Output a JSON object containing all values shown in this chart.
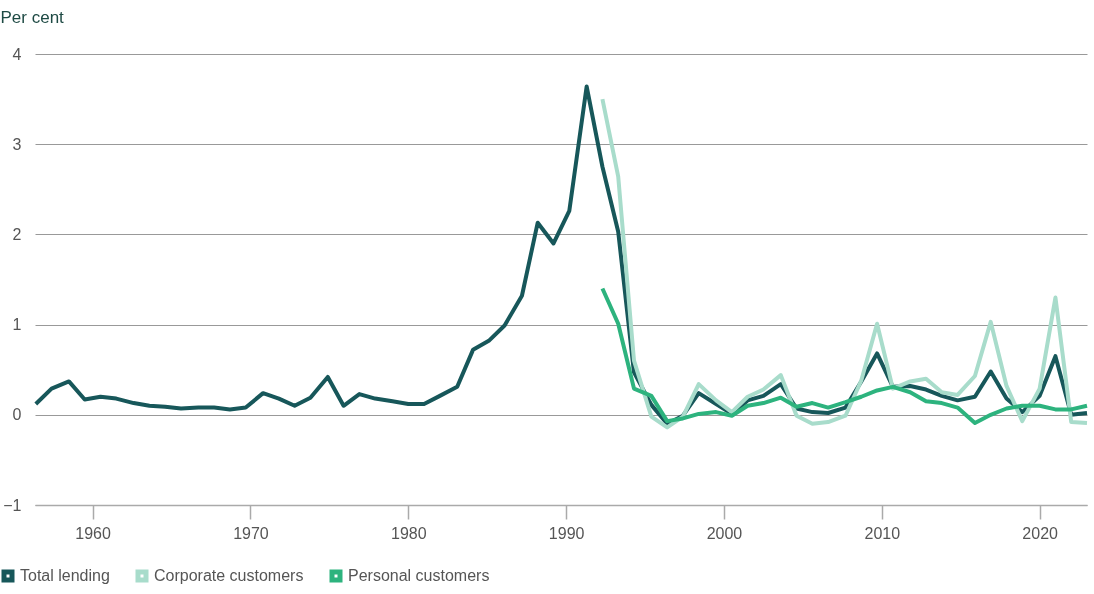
{
  "chart_data": {
    "type": "line",
    "ylabel": "Per cent",
    "x": [
      1956.4,
      1957.4,
      1958.5,
      1959.5,
      1960.5,
      1961.5,
      1962.6,
      1963.6,
      1964.6,
      1965.6,
      1966.7,
      1967.7,
      1968.7,
      1969.7,
      1970.8,
      1971.8,
      1972.8,
      1973.8,
      1974.9,
      1975.9,
      1976.9,
      1977.9,
      1979.0,
      1980.0,
      1981.0,
      1982.0,
      1983.1,
      1984.1,
      1985.1,
      1986.1,
      1987.2,
      1988.2,
      1989.2,
      1990.2,
      1991.3,
      1992.3,
      1993.3,
      1994.3,
      1995.4,
      1996.4,
      1997.4,
      1998.4,
      1999.5,
      2000.5,
      2001.5,
      2002.5,
      2003.6,
      2004.6,
      2005.6,
      2006.6,
      2007.7,
      2008.7,
      2009.7,
      2010.7,
      2011.8,
      2012.8,
      2013.8,
      2014.8,
      2015.9,
      2016.9,
      2017.9,
      2018.9,
      2020.0,
      2021.0,
      2022.0,
      2023.0
    ],
    "series": [
      {
        "name": "Total lending",
        "color": "#17575a",
        "values": [
          0.12,
          0.29,
          0.37,
          0.17,
          0.2,
          0.18,
          0.13,
          0.1,
          0.09,
          0.07,
          0.08,
          0.08,
          0.06,
          0.08,
          0.24,
          0.18,
          0.1,
          0.19,
          0.42,
          0.1,
          0.23,
          0.18,
          0.15,
          0.12,
          0.12,
          0.21,
          0.31,
          0.72,
          0.82,
          0.99,
          1.32,
          2.13,
          1.9,
          2.26,
          3.64,
          2.75,
          2.03,
          0.47,
          0.11,
          -0.1,
          -0.01,
          0.24,
          0.12,
          0.01,
          0.16,
          0.21,
          0.34,
          0.07,
          0.03,
          0.02,
          0.08,
          0.37,
          0.68,
          0.31,
          0.32,
          0.28,
          0.21,
          0.16,
          0.2,
          0.48,
          0.18,
          0.03,
          0.21,
          0.65,
          0.0,
          0.02
        ]
      },
      {
        "name": "Corporate customers",
        "color": "#a8dccb",
        "values": [
          null,
          null,
          null,
          null,
          null,
          null,
          null,
          null,
          null,
          null,
          null,
          null,
          null,
          null,
          null,
          null,
          null,
          null,
          null,
          null,
          null,
          null,
          null,
          null,
          null,
          null,
          null,
          null,
          null,
          null,
          null,
          null,
          null,
          null,
          null,
          3.5,
          2.64,
          0.6,
          -0.02,
          -0.14,
          -0.02,
          0.34,
          0.16,
          0.03,
          0.2,
          0.28,
          0.44,
          -0.01,
          -0.1,
          -0.08,
          -0.01,
          0.38,
          1.01,
          0.29,
          0.37,
          0.4,
          0.25,
          0.22,
          0.43,
          1.03,
          0.32,
          -0.07,
          0.29,
          1.3,
          -0.08,
          -0.09
        ]
      },
      {
        "name": "Personal customers",
        "color": "#2db37e",
        "values": [
          null,
          null,
          null,
          null,
          null,
          null,
          null,
          null,
          null,
          null,
          null,
          null,
          null,
          null,
          null,
          null,
          null,
          null,
          null,
          null,
          null,
          null,
          null,
          null,
          null,
          null,
          null,
          null,
          null,
          null,
          null,
          null,
          null,
          null,
          null,
          1.4,
          1.01,
          0.29,
          0.21,
          -0.07,
          -0.04,
          0.01,
          0.03,
          -0.01,
          0.1,
          0.13,
          0.19,
          0.09,
          0.13,
          0.08,
          0.14,
          0.2,
          0.27,
          0.31,
          0.25,
          0.15,
          0.13,
          0.08,
          -0.09,
          0.0,
          0.07,
          0.1,
          0.1,
          0.06,
          0.06,
          0.1
        ]
      }
    ],
    "xlim": [
      1956.35,
      2023.0
    ],
    "xticks": [
      1960,
      1970,
      1980,
      1990,
      2000,
      2010,
      2020
    ],
    "ylim": [
      -1,
      4
    ],
    "yticks": [
      -1,
      0,
      1,
      2,
      3,
      4
    ],
    "grid": "y",
    "legend": "bottom",
    "marker": "none",
    "line_style": "solid"
  }
}
